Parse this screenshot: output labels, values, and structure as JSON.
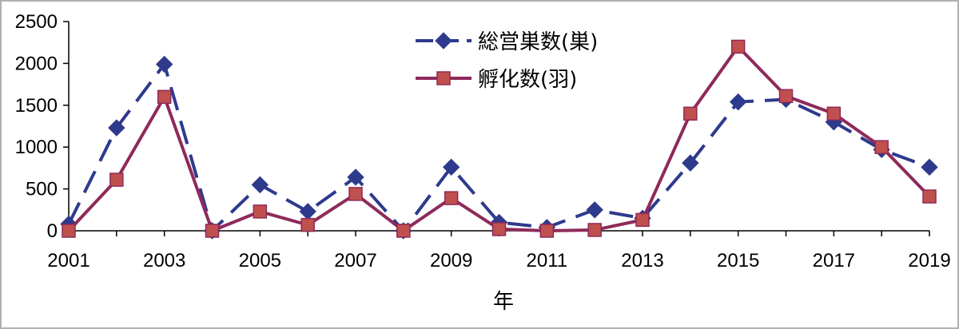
{
  "chart_data": {
    "type": "line",
    "title": "",
    "xlabel": "年",
    "ylabel": "",
    "ylim": [
      0,
      2500
    ],
    "yticks": [
      0,
      500,
      1000,
      1500,
      2000,
      2500
    ],
    "x": [
      2001,
      2002,
      2003,
      2004,
      2005,
      2006,
      2007,
      2008,
      2009,
      2010,
      2011,
      2012,
      2013,
      2014,
      2015,
      2016,
      2017,
      2018,
      2019
    ],
    "xtick_labels": [
      "2001",
      "2003",
      "2005",
      "2007",
      "2009",
      "2011",
      "2013",
      "2015",
      "2017",
      "2019"
    ],
    "grid": false,
    "legend_position": "top-center",
    "series": [
      {
        "name": "総営巣数(巣)",
        "color": "#2E3A8C",
        "marker": "diamond",
        "line_style": "dashed",
        "values": [
          80,
          1230,
          1990,
          0,
          550,
          230,
          640,
          0,
          760,
          100,
          40,
          250,
          150,
          810,
          1540,
          1570,
          1300,
          970,
          760
        ]
      },
      {
        "name": "孵化数(羽)",
        "color": "#8E2A5A",
        "marker": "square",
        "marker_fill": "#C0504D",
        "line_style": "solid",
        "values": [
          0,
          610,
          1600,
          0,
          230,
          70,
          440,
          0,
          390,
          20,
          0,
          10,
          130,
          1400,
          2200,
          1610,
          1400,
          1000,
          410
        ]
      }
    ]
  }
}
